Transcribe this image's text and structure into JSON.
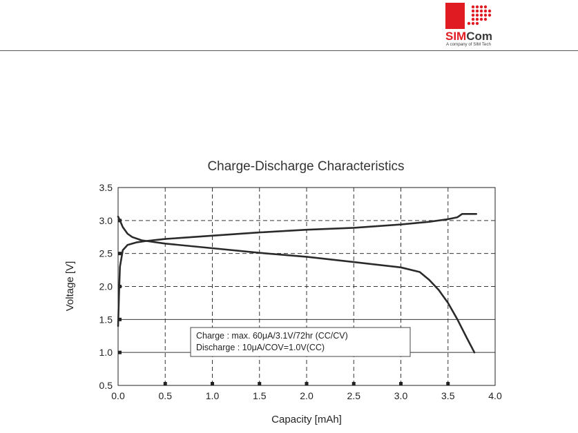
{
  "header": {
    "logo": {
      "brand": "SIMCom",
      "tagline": "A company of SIM Tech",
      "colors": {
        "red": "#e01b22",
        "dark": "#3a3a3a"
      }
    }
  },
  "chart_data": {
    "type": "line",
    "title": "Charge-Discharge Characteristics",
    "xlabel": "Capacity [mAh]",
    "ylabel": "Voltage [V]",
    "xlim": [
      0.0,
      4.0
    ],
    "ylim": [
      0.5,
      3.5
    ],
    "x_ticks": [
      "0.0",
      "0.5",
      "1.0",
      "1.5",
      "2.0",
      "2.5",
      "3.0",
      "3.5",
      "4.0"
    ],
    "y_ticks": [
      "0.5",
      "1.0",
      "1.5",
      "2.0",
      "2.5",
      "3.0",
      "3.5"
    ],
    "grid": true,
    "legend": {
      "lines": [
        "Charge : max. 60μA/3.1V/72hr (CC/CV)",
        "Discharge : 10μA/COV=1.0V(CC)"
      ],
      "placement": "lower-center"
    },
    "series": [
      {
        "values": [
          [
            0.0,
            1.4
          ],
          [
            0.01,
            1.9
          ],
          [
            0.02,
            2.3
          ],
          [
            0.05,
            2.55
          ],
          [
            0.1,
            2.63
          ],
          [
            0.2,
            2.67
          ],
          [
            0.3,
            2.69
          ],
          [
            0.5,
            2.72
          ],
          [
            1.0,
            2.77
          ],
          [
            1.5,
            2.82
          ],
          [
            2.0,
            2.86
          ],
          [
            2.5,
            2.89
          ],
          [
            3.0,
            2.94
          ],
          [
            3.3,
            2.98
          ],
          [
            3.5,
            3.02
          ],
          [
            3.6,
            3.05
          ],
          [
            3.65,
            3.1
          ],
          [
            3.8,
            3.1
          ]
        ]
      },
      {
        "values": [
          [
            0.0,
            3.06
          ],
          [
            0.02,
            3.0
          ],
          [
            0.05,
            2.9
          ],
          [
            0.1,
            2.8
          ],
          [
            0.15,
            2.75
          ],
          [
            0.25,
            2.7
          ],
          [
            0.5,
            2.65
          ],
          [
            1.0,
            2.58
          ],
          [
            1.5,
            2.51
          ],
          [
            2.0,
            2.45
          ],
          [
            2.5,
            2.37
          ],
          [
            3.0,
            2.29
          ],
          [
            3.2,
            2.22
          ],
          [
            3.3,
            2.1
          ],
          [
            3.4,
            1.95
          ],
          [
            3.5,
            1.75
          ],
          [
            3.6,
            1.5
          ],
          [
            3.7,
            1.22
          ],
          [
            3.78,
            1.0
          ]
        ]
      }
    ]
  }
}
